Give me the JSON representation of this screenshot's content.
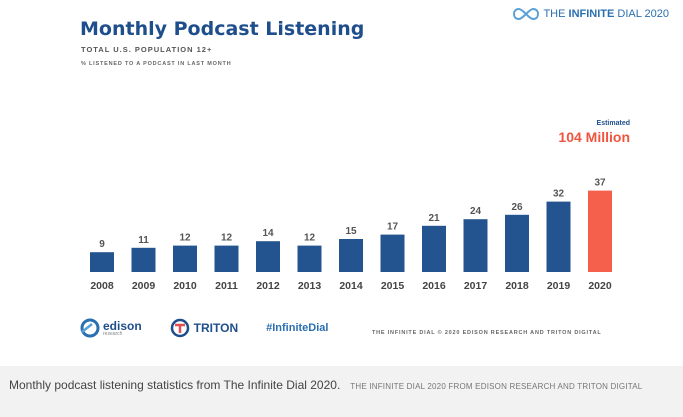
{
  "brand_top": {
    "part1": "THE ",
    "part2": "INFINITE",
    "part3": " DIAL 2020"
  },
  "chart_data": {
    "type": "bar",
    "title": "Monthly Podcast Listening",
    "subtitle": "TOTAL U.S. POPULATION 12+",
    "subtitle2": "% LISTENED TO A PODCAST IN LAST MONTH",
    "categories": [
      "2008",
      "2009",
      "2010",
      "2011",
      "2012",
      "2013",
      "2014",
      "2015",
      "2016",
      "2017",
      "2018",
      "2019",
      "2020"
    ],
    "values": [
      9,
      11,
      12,
      12,
      14,
      12,
      15,
      17,
      21,
      24,
      26,
      32,
      37
    ],
    "colors": {
      "default": "#24548f",
      "highlight": "#f4604b"
    },
    "highlight_index": 12,
    "annotation": {
      "label": "Estimated",
      "value": "104 Million"
    },
    "ylim": [
      0,
      40
    ]
  },
  "footer": {
    "edison": "edison",
    "edison_sub": "research",
    "triton": "TRITON",
    "hashtag": "#InfiniteDial",
    "copyright": "THE INFINITE DIAL   © 2020 EDISON RESEARCH AND TRITON DIGITAL"
  },
  "caption": {
    "text": "Monthly podcast listening statistics from The Infinite Dial 2020.",
    "credit": "THE INFINITE DIAL 2020 FROM EDISON RESEARCH AND TRITON DIGITAL"
  }
}
